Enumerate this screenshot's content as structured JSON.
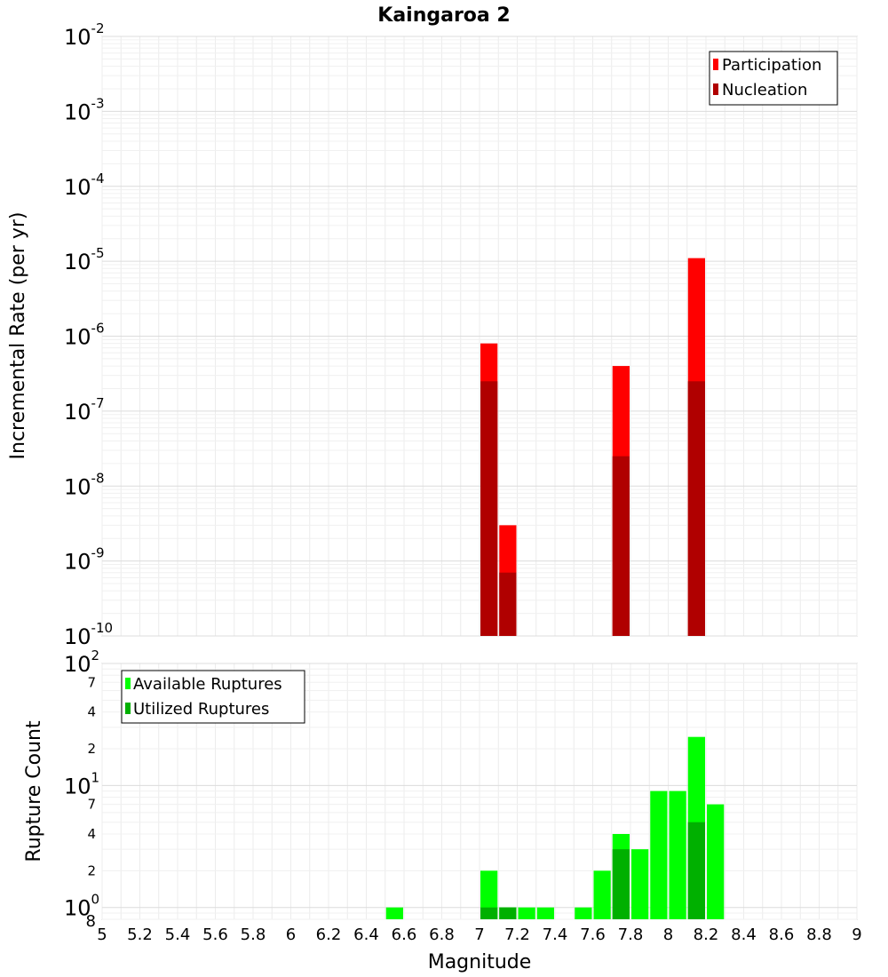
{
  "chart_data": [
    {
      "type": "bar",
      "title": "Kaingaroa 2",
      "ylabel": "Incremental Rate (per yr)",
      "xlabel": "",
      "xlim": [
        5,
        9
      ],
      "ylim": [
        1e-10,
        0.01
      ],
      "yscale": "log",
      "bar_width": 0.1,
      "grid": true,
      "legend_position": "top-right",
      "y_ticks": [
        {
          "base": "10",
          "exp": "-10"
        },
        {
          "base": "10",
          "exp": "-9"
        },
        {
          "base": "10",
          "exp": "-8"
        },
        {
          "base": "10",
          "exp": "-7"
        },
        {
          "base": "10",
          "exp": "-6"
        },
        {
          "base": "10",
          "exp": "-5"
        },
        {
          "base": "10",
          "exp": "-4"
        },
        {
          "base": "10",
          "exp": "-3"
        },
        {
          "base": "10",
          "exp": "-2"
        }
      ],
      "series": [
        {
          "name": "Participation",
          "color": "#ff0000",
          "points": [
            {
              "x": 7.05,
              "y": 8e-07
            },
            {
              "x": 7.15,
              "y": 3e-09
            },
            {
              "x": 7.75,
              "y": 4e-07
            },
            {
              "x": 8.15,
              "y": 1.1e-05
            }
          ]
        },
        {
          "name": "Nucleation",
          "color": "#b00000",
          "points": [
            {
              "x": 7.05,
              "y": 2.5e-07
            },
            {
              "x": 7.15,
              "y": 7e-10
            },
            {
              "x": 7.75,
              "y": 2.5e-08
            },
            {
              "x": 8.15,
              "y": 2.5e-07
            }
          ]
        }
      ]
    },
    {
      "type": "bar",
      "title": "",
      "ylabel": "Rupture Count",
      "xlabel": "Magnitude",
      "xlim": [
        5,
        9
      ],
      "ylim": [
        0.8,
        100
      ],
      "yscale": "log",
      "bar_width": 0.1,
      "grid": true,
      "legend_position": "top-left",
      "x_ticks": [
        "5",
        "5.2",
        "5.4",
        "5.6",
        "5.8",
        "6",
        "6.2",
        "6.4",
        "6.6",
        "6.8",
        "7",
        "7.2",
        "7.4",
        "7.6",
        "7.8",
        "8",
        "8.2",
        "8.4",
        "8.6",
        "8.8",
        "9"
      ],
      "y_major_ticks": [
        {
          "base": "10",
          "exp": "0"
        },
        {
          "base": "10",
          "exp": "1"
        },
        {
          "base": "10",
          "exp": "2"
        }
      ],
      "y_minor_ticks": [
        "8",
        "2",
        "4",
        "7",
        "2",
        "4",
        "7"
      ],
      "series": [
        {
          "name": "Available Ruptures",
          "color": "#00ff00",
          "points": [
            {
              "x": 6.55,
              "y": 1
            },
            {
              "x": 7.05,
              "y": 2
            },
            {
              "x": 7.15,
              "y": 1
            },
            {
              "x": 7.25,
              "y": 1
            },
            {
              "x": 7.35,
              "y": 1
            },
            {
              "x": 7.55,
              "y": 1
            },
            {
              "x": 7.65,
              "y": 2
            },
            {
              "x": 7.75,
              "y": 4
            },
            {
              "x": 7.85,
              "y": 3
            },
            {
              "x": 7.95,
              "y": 9
            },
            {
              "x": 8.05,
              "y": 9
            },
            {
              "x": 8.15,
              "y": 25
            },
            {
              "x": 8.25,
              "y": 7
            }
          ]
        },
        {
          "name": "Utilized Ruptures",
          "color": "#00b000",
          "points": [
            {
              "x": 7.05,
              "y": 1
            },
            {
              "x": 7.15,
              "y": 1
            },
            {
              "x": 7.75,
              "y": 3
            },
            {
              "x": 8.15,
              "y": 5
            }
          ]
        }
      ]
    }
  ]
}
